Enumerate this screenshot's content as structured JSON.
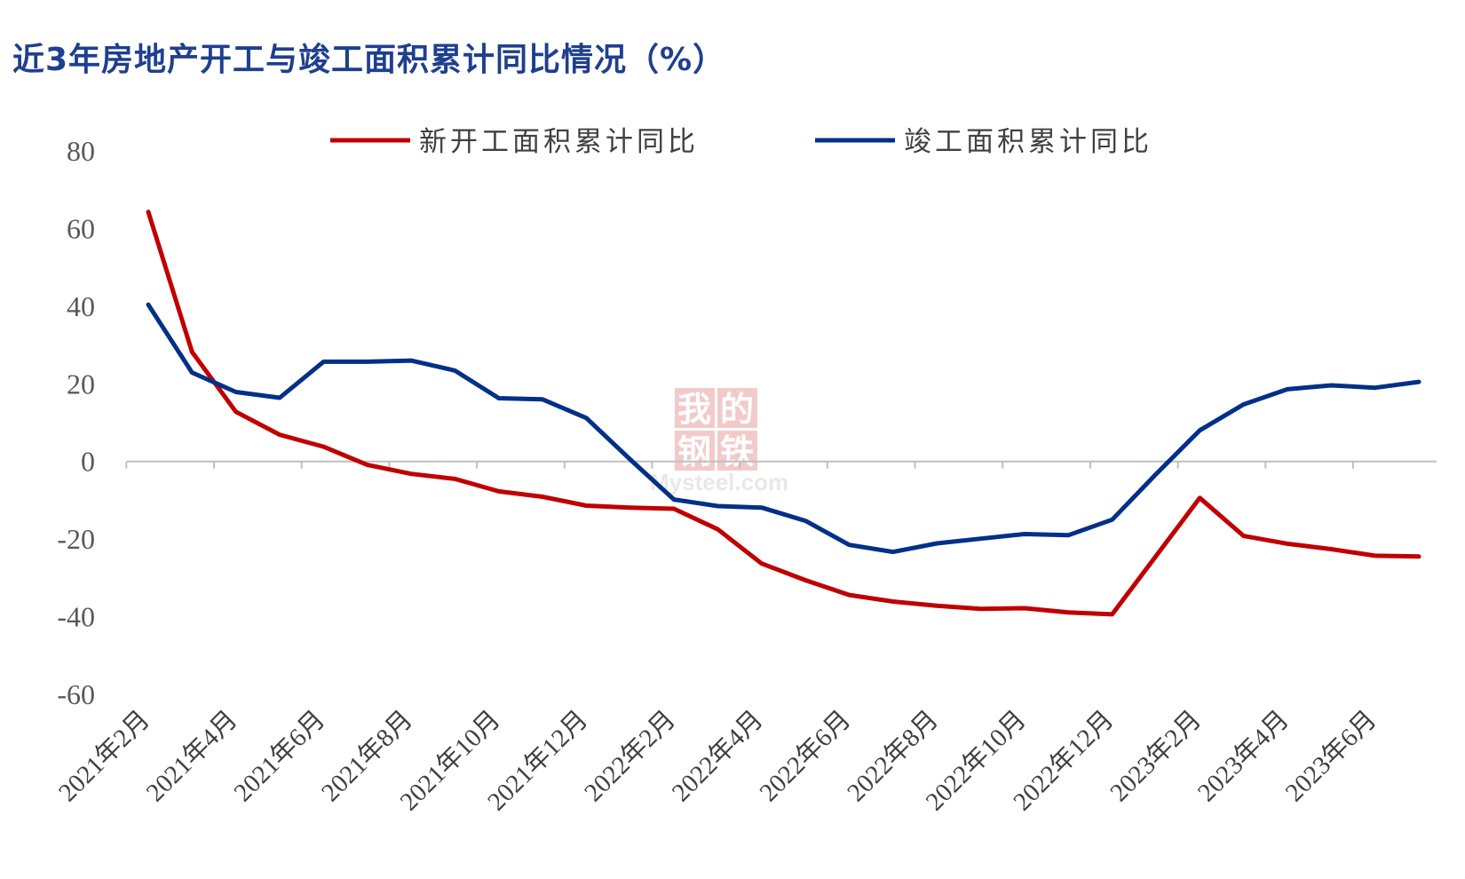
{
  "chart_data": {
    "type": "line",
    "title": "近3年房地产开工与竣工面积累计同比情况（%）",
    "categories": [
      "2021年2月",
      "2021年3月",
      "2021年4月",
      "2021年5月",
      "2021年6月",
      "2021年7月",
      "2021年8月",
      "2021年9月",
      "2021年10月",
      "2021年11月",
      "2021年12月",
      "2022年1月",
      "2022年2月",
      "2022年3月",
      "2022年4月",
      "2022年5月",
      "2022年6月",
      "2022年7月",
      "2022年8月",
      "2022年9月",
      "2022年10月",
      "2022年11月",
      "2022年12月",
      "2023年1月",
      "2023年2月",
      "2023年3月",
      "2023年4月",
      "2023年5月",
      "2023年6月",
      "2023年7月"
    ],
    "x_tick_labels": [
      "2021年2月",
      "2021年4月",
      "2021年6月",
      "2021年8月",
      "2021年10月",
      "2021年12月",
      "2022年2月",
      "2022年4月",
      "2022年6月",
      "2022年8月",
      "2022年10月",
      "2022年12月",
      "2023年2月",
      "2023年4月",
      "2023年6月"
    ],
    "series": [
      {
        "name": "新开工面积累计同比",
        "color": "#c00000",
        "values": [
          64.3,
          28.2,
          12.8,
          6.9,
          3.8,
          -0.9,
          -3.2,
          -4.5,
          -7.7,
          -9.1,
          -11.4,
          -11.9,
          -12.2,
          -17.5,
          -26.3,
          -30.6,
          -34.4,
          -36.1,
          -37.2,
          -38.0,
          -37.8,
          -38.9,
          -39.4,
          -24.4,
          -9.4,
          -19.2,
          -21.2,
          -22.6,
          -24.3,
          -24.5
        ]
      },
      {
        "name": "竣工面积累计同比",
        "color": "#003087",
        "values": [
          40.4,
          22.9,
          17.9,
          16.4,
          25.7,
          25.7,
          26.0,
          23.4,
          16.3,
          16.0,
          11.2,
          0.5,
          -9.8,
          -11.5,
          -11.9,
          -15.3,
          -21.5,
          -23.3,
          -21.1,
          -19.9,
          -18.7,
          -19.0,
          -15.0,
          -3.3,
          8.0,
          14.7,
          18.6,
          19.6,
          19.0,
          20.5
        ]
      }
    ],
    "ylim": [
      -60,
      80
    ],
    "yticks": [
      80,
      60,
      40,
      20,
      0,
      -20,
      -40,
      -60
    ],
    "grid": false,
    "legend_position": "top"
  },
  "watermark": {
    "cn": [
      "我",
      "的",
      "钢",
      "铁"
    ],
    "en": "Mysteel.com",
    "color": "#e8a0a0"
  }
}
